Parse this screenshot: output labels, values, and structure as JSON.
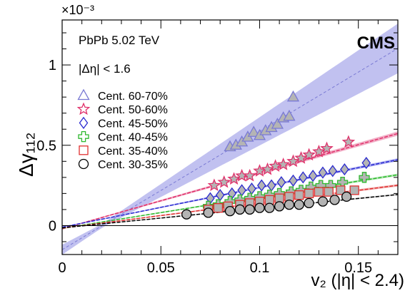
{
  "chart_data": {
    "type": "scatter",
    "title": "",
    "xlabel": "v₂ (|η| < 2.4)",
    "ylabel": "Δγ₁₁₂",
    "y_multiplier": "×10⁻³",
    "xlim": [
      0,
      0.17
    ],
    "ylim": [
      -0.00018,
      0.00128
    ],
    "x_ticks": [
      {
        "value": 0,
        "label": "0"
      },
      {
        "value": 0.05,
        "label": "0.05"
      },
      {
        "value": 0.1,
        "label": "0.1"
      },
      {
        "value": 0.15,
        "label": "0.15"
      }
    ],
    "y_ticks": [
      {
        "value": 0,
        "label": "0"
      },
      {
        "value": 0.0005,
        "label": "0.5"
      },
      {
        "value": 0.001,
        "label": "1"
      }
    ],
    "grid": false,
    "legend_position": "left",
    "annotations": {
      "system": "PbPb 5.02 TeV",
      "eta_cut": "|Δη| < 1.6",
      "experiment": "CMS"
    },
    "series": [
      {
        "name": "Cent. 60-70%",
        "marker": "triangle",
        "color": "#7a7ad4",
        "fill": "#b4b4b4",
        "band": "#a7a7ea",
        "fit": {
          "intercept": -0.00015,
          "slope": 0.00737,
          "band_slope": 0.00095,
          "band_base": 1.2e-05
        },
        "x": [
          0.085,
          0.088,
          0.091,
          0.094,
          0.097,
          0.1,
          0.103,
          0.106,
          0.109,
          0.112,
          0.115,
          0.117
        ],
        "y": [
          0.00049,
          0.0005,
          0.00052,
          0.00055,
          0.00058,
          0.00056,
          0.00059,
          0.00061,
          0.00063,
          0.00067,
          0.00068,
          0.0008
        ]
      },
      {
        "name": "Cent. 50-60%",
        "marker": "star",
        "color": "#e0306a",
        "fill": "#b4b4b4",
        "band": "#f0a0bc",
        "fit": {
          "intercept": -2e-05,
          "slope": 0.00349,
          "band_slope": 6e-05,
          "band_base": 4e-06
        },
        "x": [
          0.077,
          0.082,
          0.087,
          0.091,
          0.095,
          0.1,
          0.104,
          0.108,
          0.112,
          0.117,
          0.121,
          0.125,
          0.13,
          0.134,
          0.145
        ],
        "y": [
          0.00025,
          0.00027,
          0.00029,
          0.00031,
          0.00031,
          0.00034,
          0.00035,
          0.00037,
          0.00038,
          0.0004,
          0.00042,
          0.00044,
          0.00046,
          0.00048,
          0.00052
        ]
      },
      {
        "name": "Cent. 45-50%",
        "marker": "diamond",
        "color": "#2a2ad0",
        "fill": "#b4b4b4",
        "band": "#9d9df0",
        "fit": {
          "intercept": -1e-05,
          "slope": 0.00247,
          "band_slope": 4e-05,
          "band_base": 3e-06
        },
        "x": [
          0.075,
          0.08,
          0.086,
          0.091,
          0.096,
          0.101,
          0.106,
          0.111,
          0.117,
          0.122,
          0.127,
          0.132,
          0.137,
          0.143,
          0.154
        ],
        "y": [
          0.00017,
          0.00019,
          0.0002,
          0.00022,
          0.00023,
          0.00025,
          0.00025,
          0.00027,
          0.00028,
          0.0003,
          0.00031,
          0.00033,
          0.00034,
          0.00035,
          0.00039
        ]
      },
      {
        "name": "Cent. 40-45%",
        "marker": "cross",
        "color": "#2eb82e",
        "fill": "#b4b4b4",
        "band": "#a8e4a8",
        "fit": {
          "intercept": -1.7e-05,
          "slope": 0.00196,
          "band_slope": 3e-05,
          "band_base": 3e-06
        },
        "x": [
          0.074,
          0.079,
          0.085,
          0.09,
          0.095,
          0.1,
          0.105,
          0.11,
          0.116,
          0.121,
          0.126,
          0.131,
          0.136,
          0.142,
          0.153
        ],
        "y": [
          0.00012,
          0.00013,
          0.00015,
          0.00016,
          0.00017,
          0.00018,
          0.00019,
          0.0002,
          0.00021,
          0.00022,
          0.00024,
          0.00025,
          0.00025,
          0.00027,
          0.0003
        ]
      },
      {
        "name": "Cent. 35-40%",
        "marker": "square",
        "color": "#e03030",
        "fill": "#b4b4b4",
        "band": "#f0a8a8",
        "fit": {
          "intercept": -1.6e-05,
          "slope": 0.00157,
          "band_slope": 3e-05,
          "band_base": 3e-06
        },
        "x": [
          0.074,
          0.079,
          0.084,
          0.09,
          0.095,
          0.1,
          0.105,
          0.11,
          0.115,
          0.12,
          0.125,
          0.13,
          0.135,
          0.141,
          0.148
        ],
        "y": [
          0.0001,
          0.00011,
          0.00012,
          0.00013,
          0.00014,
          0.00015,
          0.00016,
          0.00017,
          0.00018,
          0.00019,
          0.0002,
          0.00021,
          0.00021,
          0.00022,
          0.00022
        ]
      },
      {
        "name": "Cent. 30-35%",
        "marker": "circle",
        "color": "#000000",
        "fill": "#b4b4b4",
        "band": "#c8c8c8",
        "fit": {
          "intercept": -1.4e-05,
          "slope": 0.00122,
          "band_slope": 2e-05,
          "band_base": 2e-06
        },
        "x": [
          0.063,
          0.074,
          0.085,
          0.09,
          0.095,
          0.1,
          0.105,
          0.11,
          0.115,
          0.12,
          0.125,
          0.132,
          0.138,
          0.144
        ],
        "y": [
          7e-05,
          8e-05,
          9e-05,
          0.0001,
          0.0001,
          0.00011,
          0.00011,
          0.00012,
          0.00013,
          0.00013,
          0.00014,
          0.00015,
          0.00016,
          0.00018
        ]
      }
    ]
  }
}
